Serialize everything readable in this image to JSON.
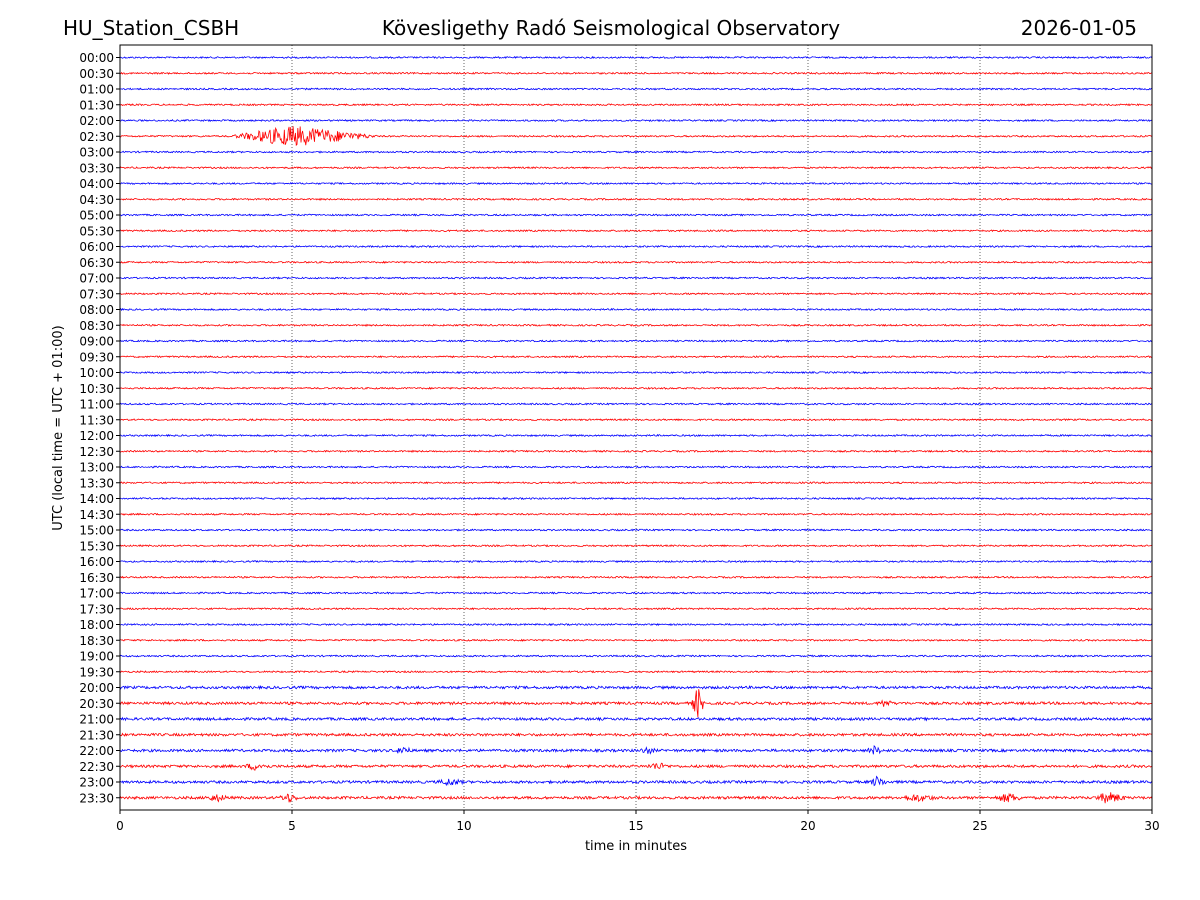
{
  "header": {
    "station": "HU_Station_CSBH",
    "observatory": "Kövesligethy Radó Seismological Observatory",
    "date": "2026-01-05"
  },
  "chart_data": {
    "type": "line",
    "title": "Kövesligethy Radó Seismological Observatory",
    "xlabel": "time in minutes",
    "ylabel": "UTC (local time = UTC + 01:00)",
    "xlim": [
      0,
      30
    ],
    "x_ticks": [
      "0",
      "5",
      "10",
      "15",
      "20",
      "25",
      "30"
    ],
    "grid": "vertical dotted at 5-minute intervals",
    "rows": [
      "00:00",
      "00:30",
      "01:00",
      "01:30",
      "02:00",
      "02:30",
      "03:00",
      "03:30",
      "04:00",
      "04:30",
      "05:00",
      "05:30",
      "06:00",
      "06:30",
      "07:00",
      "07:30",
      "08:00",
      "08:30",
      "09:00",
      "09:30",
      "10:00",
      "10:30",
      "11:00",
      "11:30",
      "12:00",
      "12:30",
      "13:00",
      "13:30",
      "14:00",
      "14:30",
      "15:00",
      "15:30",
      "16:00",
      "16:30",
      "17:00",
      "17:30",
      "18:00",
      "18:30",
      "19:00",
      "19:30",
      "20:00",
      "20:30",
      "21:00",
      "21:30",
      "22:00",
      "22:30",
      "23:00",
      "23:30"
    ],
    "colors": {
      "even_rows": "#0000ff",
      "odd_rows": "#ff0000"
    },
    "events": [
      {
        "row": "02:30",
        "start_min": 3.2,
        "peak_min": 5.0,
        "end_min": 7.5,
        "relative_amplitude": 1.0
      },
      {
        "row": "20:30",
        "start_min": 16.6,
        "peak_min": 16.8,
        "end_min": 17.0,
        "relative_amplitude": 1.5
      },
      {
        "row": "20:30",
        "start_min": 22.0,
        "peak_min": 22.2,
        "end_min": 22.5,
        "relative_amplitude": 0.3
      },
      {
        "row": "22:00",
        "start_min": 8.0,
        "peak_min": 8.2,
        "end_min": 8.5,
        "relative_amplitude": 0.4
      },
      {
        "row": "22:00",
        "start_min": 15.1,
        "peak_min": 15.3,
        "end_min": 15.6,
        "relative_amplitude": 0.3
      },
      {
        "row": "22:00",
        "start_min": 21.7,
        "peak_min": 21.9,
        "end_min": 22.2,
        "relative_amplitude": 0.4
      },
      {
        "row": "22:30",
        "start_min": 3.6,
        "peak_min": 3.9,
        "end_min": 4.4,
        "relative_amplitude": 0.3
      },
      {
        "row": "22:30",
        "start_min": 15.3,
        "peak_min": 15.6,
        "end_min": 16.0,
        "relative_amplitude": 0.3
      },
      {
        "row": "23:00",
        "start_min": 9.2,
        "peak_min": 9.6,
        "end_min": 10.0,
        "relative_amplitude": 0.3
      },
      {
        "row": "23:00",
        "start_min": 21.8,
        "peak_min": 22.0,
        "end_min": 22.3,
        "relative_amplitude": 0.5
      },
      {
        "row": "23:30",
        "start_min": 2.4,
        "peak_min": 2.8,
        "end_min": 3.2,
        "relative_amplitude": 0.3
      },
      {
        "row": "23:30",
        "start_min": 4.6,
        "peak_min": 4.9,
        "end_min": 5.2,
        "relative_amplitude": 0.4
      },
      {
        "row": "23:30",
        "start_min": 22.6,
        "peak_min": 23.2,
        "end_min": 23.8,
        "relative_amplitude": 0.3
      },
      {
        "row": "23:30",
        "start_min": 25.4,
        "peak_min": 25.8,
        "end_min": 26.3,
        "relative_amplitude": 0.4
      },
      {
        "row": "23:30",
        "start_min": 28.3,
        "peak_min": 28.7,
        "end_min": 29.3,
        "relative_amplitude": 0.5
      }
    ]
  }
}
